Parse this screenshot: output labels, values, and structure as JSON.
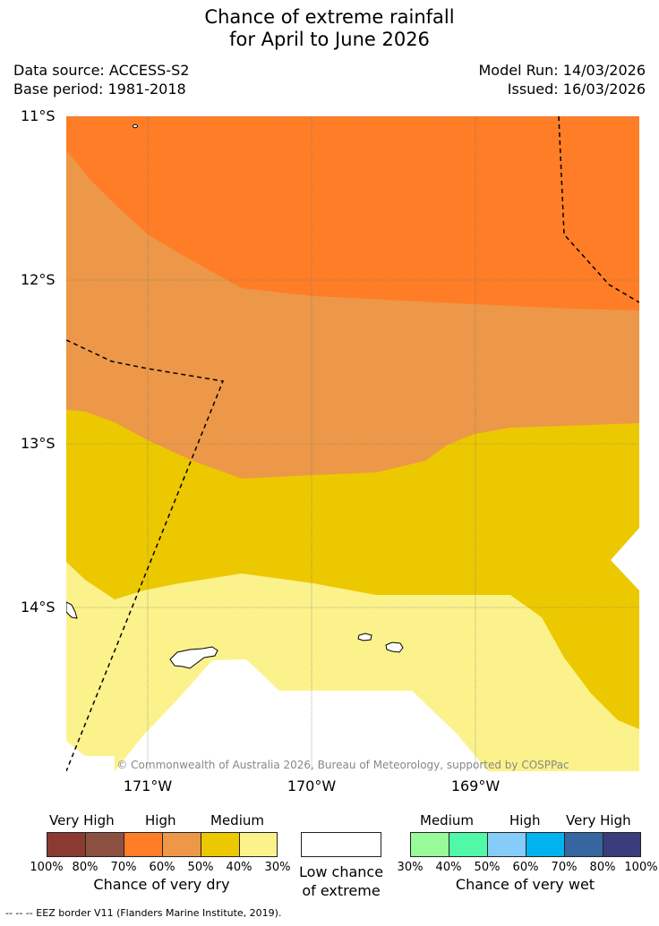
{
  "header": {
    "title_line1": "Chance of extreme rainfall",
    "title_line2": "for April to June 2026",
    "data_source": "Data source: ACCESS-S2",
    "base_period": "Base period: 1981-2018",
    "model_run": "Model Run: 14/03/2026",
    "issued": "Issued: 16/03/2026"
  },
  "map": {
    "lat_labels": [
      "11°S",
      "12°S",
      "13°S",
      "14°S"
    ],
    "lon_labels": [
      "171°W",
      "170°W",
      "169°W"
    ],
    "copyright": "© Commonwealth of Australia 2026, Bureau of Meteorology, supported by COSPPac"
  },
  "legend": {
    "dry": {
      "categories": [
        "Very High",
        "High",
        "Medium"
      ],
      "colors": [
        "#8b3a32",
        "#8b5040",
        "#ff7d26",
        "#ec9848",
        "#ecc800",
        "#fcf28c"
      ],
      "ticks": [
        "100%",
        "80%",
        "70%",
        "60%",
        "50%",
        "40%",
        "30%"
      ],
      "title": "Chance of very dry"
    },
    "low": {
      "title_line1": "Low chance",
      "title_line2": "of extreme",
      "color": "#ffffff"
    },
    "wet": {
      "categories": [
        "Medium",
        "High",
        "Very High"
      ],
      "colors": [
        "#98fa98",
        "#50f8a8",
        "#86ccf8",
        "#00b2ee",
        "#3666a0",
        "#3b3c7c"
      ],
      "ticks": [
        "30%",
        "40%",
        "50%",
        "60%",
        "70%",
        "80%",
        "100%"
      ],
      "title": "Chance of very wet"
    }
  },
  "footer": {
    "eez_legend": "-- -- -- EEZ border V11 (Flanders Marine Institute, 2019)."
  }
}
